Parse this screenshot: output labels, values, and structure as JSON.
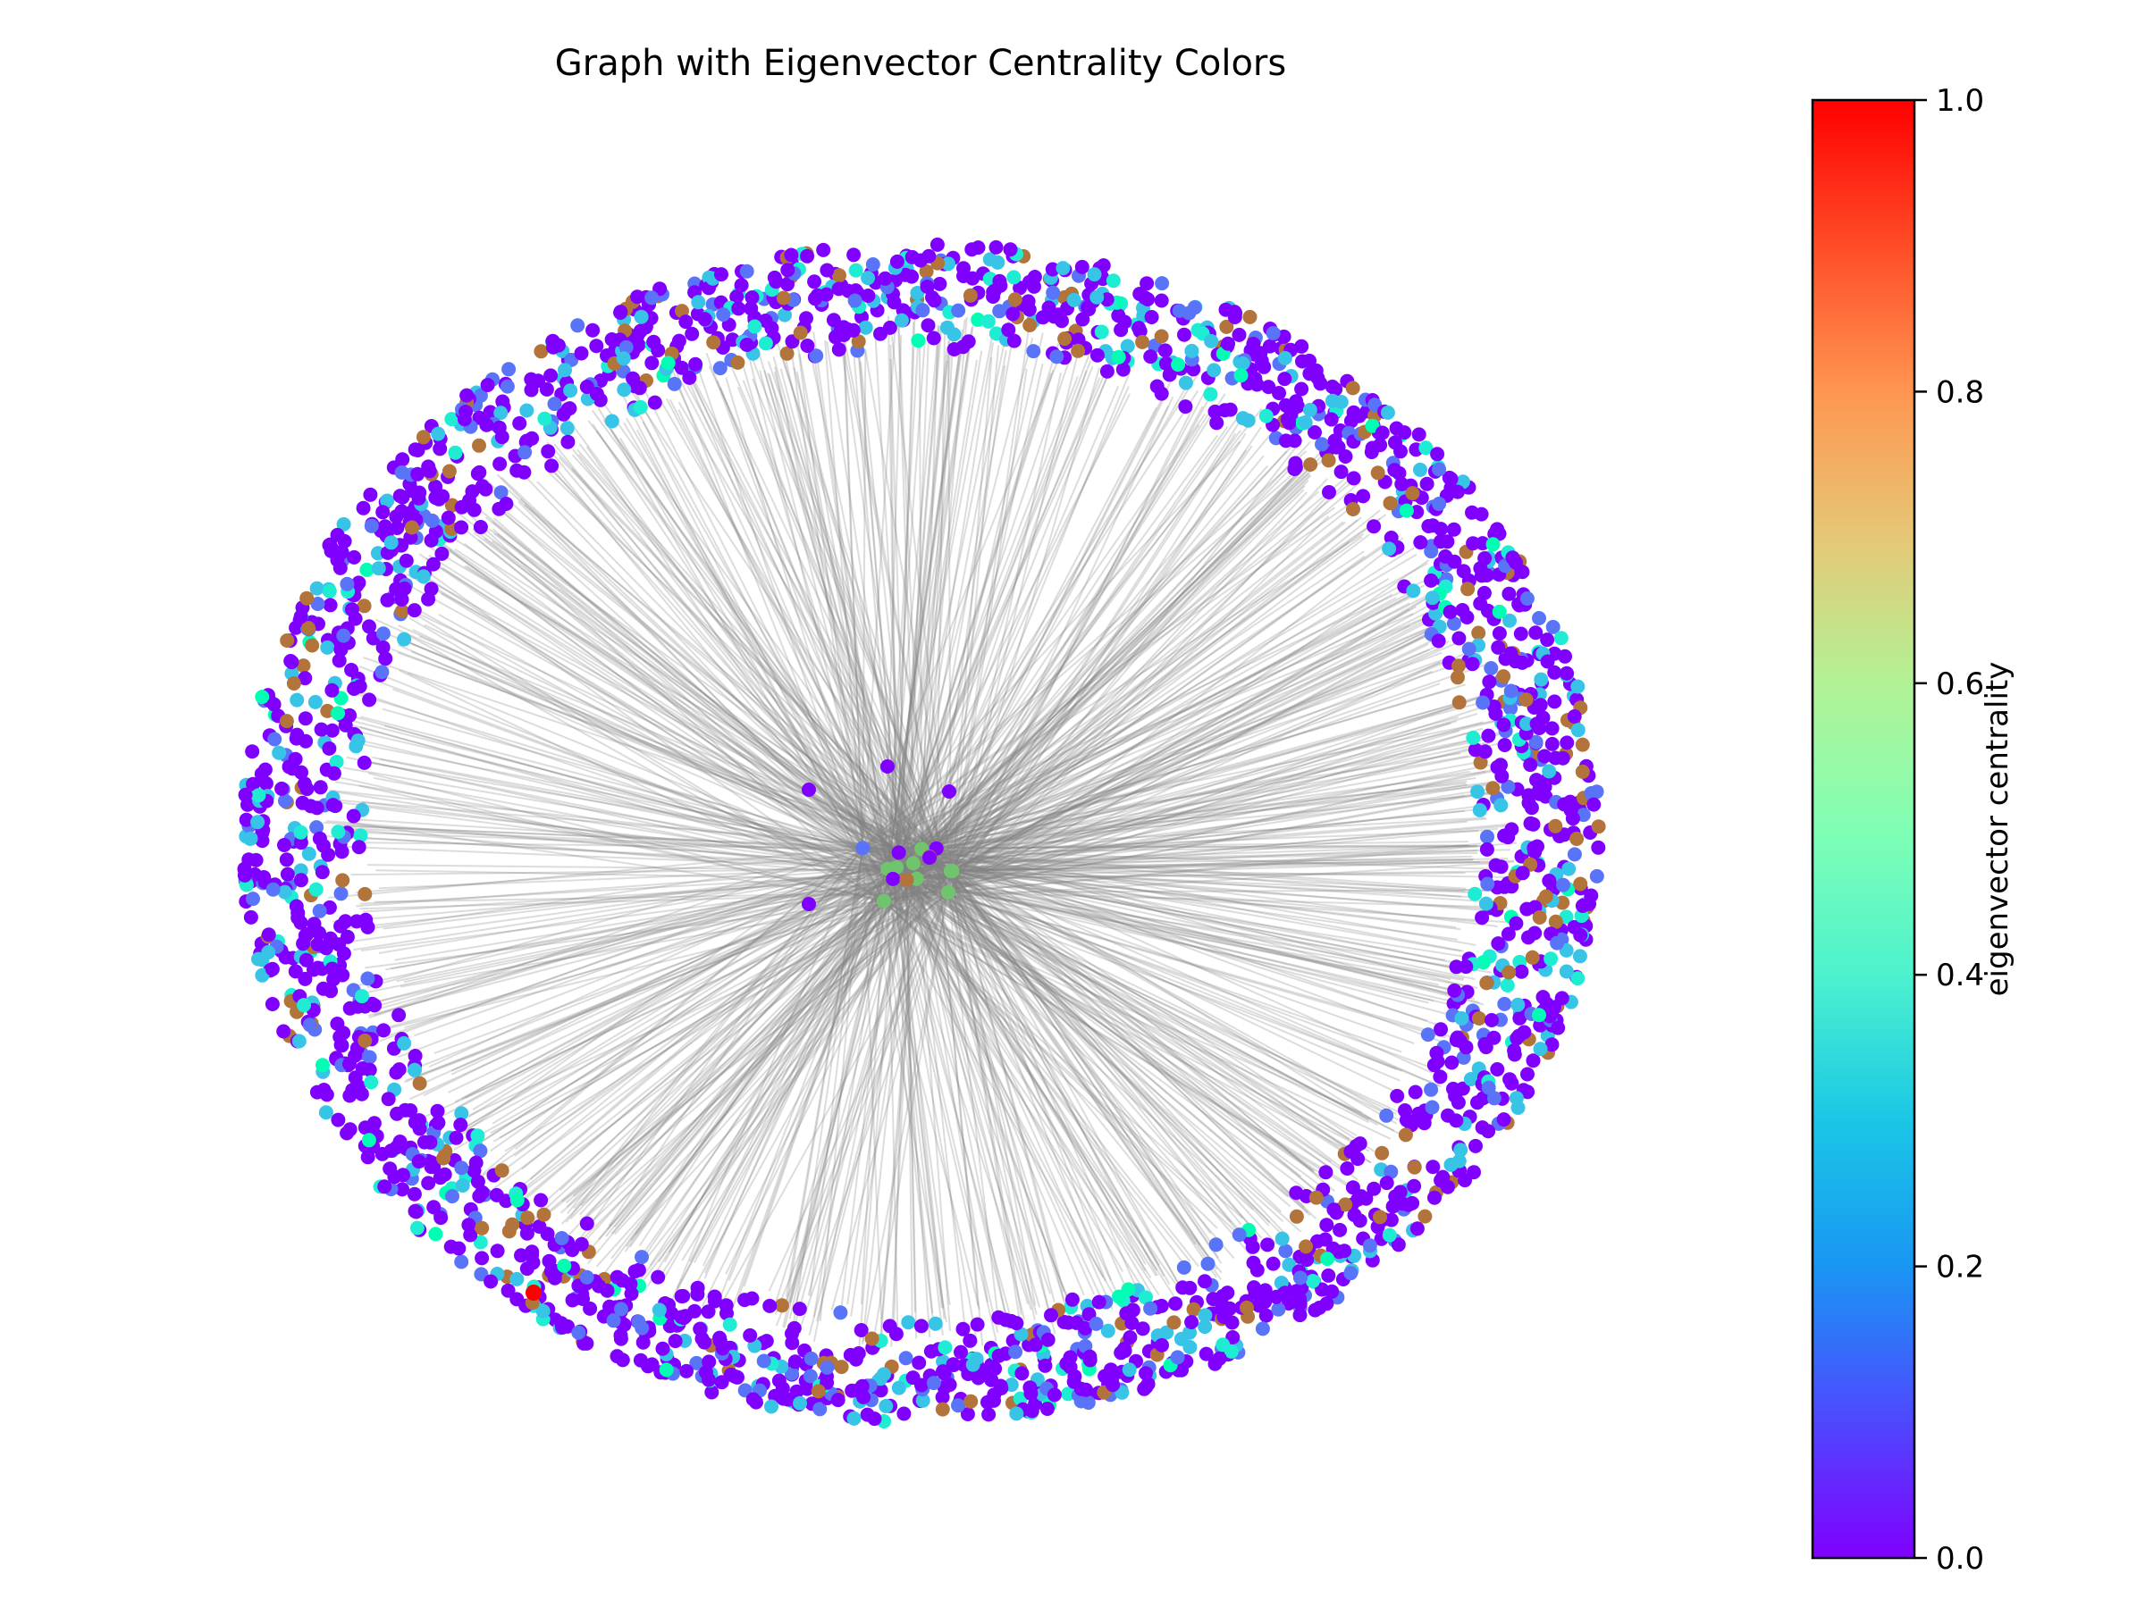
{
  "title": "Graph with Eigenvector Centrality Colors",
  "colorbar": {
    "label": "eigenvector centrality",
    "colormap": "rainbow",
    "range": [
      0.0,
      1.0
    ],
    "ticks": [
      "0.0",
      "0.2",
      "0.4",
      "0.6",
      "0.8",
      "1.0"
    ]
  },
  "graph": {
    "layout": "ring periphery with dense central hub cluster",
    "edge_color": "#808080",
    "node_color_range": [
      "#8000ff",
      "#ff0000"
    ],
    "peripheral_node_value_mix": [
      {
        "value": 0.0,
        "share": 0.62
      },
      {
        "value": 0.15,
        "share": 0.12
      },
      {
        "value": 0.28,
        "share": 0.11
      },
      {
        "value": 0.38,
        "share": 0.05
      },
      {
        "value": 0.5,
        "share": 0.02
      },
      {
        "value": 0.85,
        "share": 0.08
      }
    ],
    "max_node_value": 1.0,
    "hub_node_value": 0.72
  }
}
